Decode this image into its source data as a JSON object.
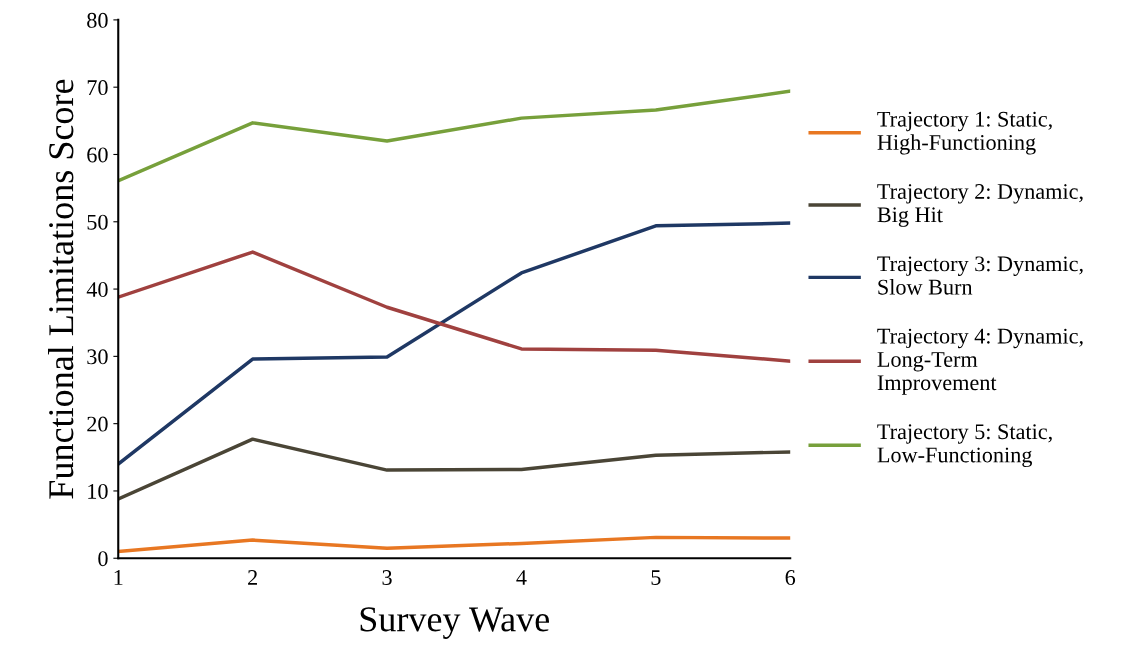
{
  "chart_data": {
    "type": "line",
    "xlabel": "Survey Wave",
    "ylabel": "Functional Limitations Score",
    "x": [
      1,
      2,
      3,
      4,
      5,
      6
    ],
    "series": [
      {
        "name": "Trajectory 1: Static,\nHigh-Functioning",
        "color": "#e87722",
        "values": [
          1.0,
          2.7,
          1.5,
          2.2,
          3.1,
          3.0
        ]
      },
      {
        "name": "Trajectory 2: Dynamic,\nBig Hit",
        "color": "#4a4536",
        "values": [
          8.8,
          17.7,
          13.1,
          13.2,
          15.3,
          15.8
        ]
      },
      {
        "name": "Trajectory 3: Dynamic,\nSlow Burn",
        "color": "#1f3864",
        "values": [
          14.0,
          29.6,
          29.9,
          42.4,
          49.4,
          49.8
        ]
      },
      {
        "name": "Trajectory 4: Dynamic,\nLong-Term\nImprovement",
        "color": "#a0413f",
        "values": [
          38.8,
          45.5,
          37.3,
          31.1,
          30.9,
          29.3
        ]
      },
      {
        "name": "Trajectory 5: Static,\nLow-Functioning",
        "color": "#77a03b",
        "values": [
          56.1,
          64.7,
          62.0,
          65.4,
          66.6,
          69.4
        ]
      }
    ],
    "xlim": [
      1,
      6
    ],
    "xticks": [
      1,
      2,
      3,
      4,
      5,
      6
    ],
    "ylim": [
      0,
      80
    ],
    "yticks": [
      0,
      10,
      20,
      30,
      40,
      50,
      60,
      70,
      80
    ],
    "grid": false,
    "legend": "right",
    "marker": "none",
    "line_style": "solid"
  }
}
